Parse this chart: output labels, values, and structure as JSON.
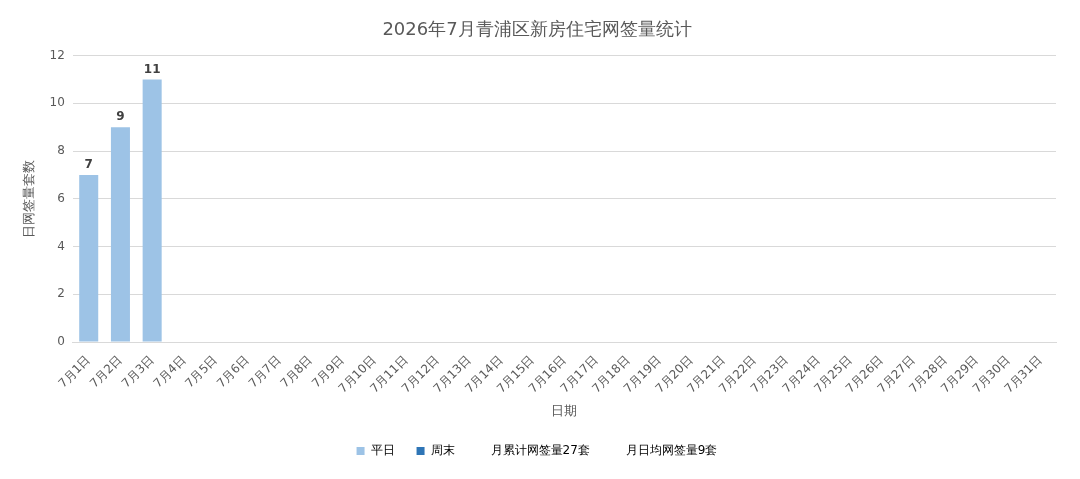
{
  "chart_data": {
    "type": "bar",
    "title": "2026年7月青浦区新房住宅网签量统计",
    "xlabel": "日期",
    "ylabel": "日网签量套数",
    "categories": [
      "7月1日",
      "7月2日",
      "7月3日",
      "7月4日",
      "7月5日",
      "7月6日",
      "7月7日",
      "7月8日",
      "7月9日",
      "7月10日",
      "7月11日",
      "7月12日",
      "7月13日",
      "7月14日",
      "7月15日",
      "7月16日",
      "7月17日",
      "7月18日",
      "7月19日",
      "7月20日",
      "7月21日",
      "7月22日",
      "7月23日",
      "7月24日",
      "7月25日",
      "7月26日",
      "7月27日",
      "7月28日",
      "7月29日",
      "7月30日",
      "7月31日"
    ],
    "series": [
      {
        "name": "平日",
        "color": "#9dc3e6",
        "values": [
          7,
          9,
          11,
          null,
          null,
          null,
          null,
          null,
          null,
          null,
          null,
          null,
          null,
          null,
          null,
          null,
          null,
          null,
          null,
          null,
          null,
          null,
          null,
          null,
          null,
          null,
          null,
          null,
          null,
          null,
          null
        ]
      },
      {
        "name": "周末",
        "color": "#2e75b6",
        "values": [
          null,
          null,
          null,
          null,
          null,
          null,
          null,
          null,
          null,
          null,
          null,
          null,
          null,
          null,
          null,
          null,
          null,
          null,
          null,
          null,
          null,
          null,
          null,
          null,
          null,
          null,
          null,
          null,
          null,
          null,
          null
        ]
      }
    ],
    "annotations": [
      "月累计网签量27套",
      "月日均网签量9套"
    ],
    "ylim": [
      0,
      12
    ],
    "yticks": [
      0,
      2,
      4,
      6,
      8,
      10,
      12
    ],
    "grid": "y",
    "legend": "bottom",
    "data_labels": true
  }
}
